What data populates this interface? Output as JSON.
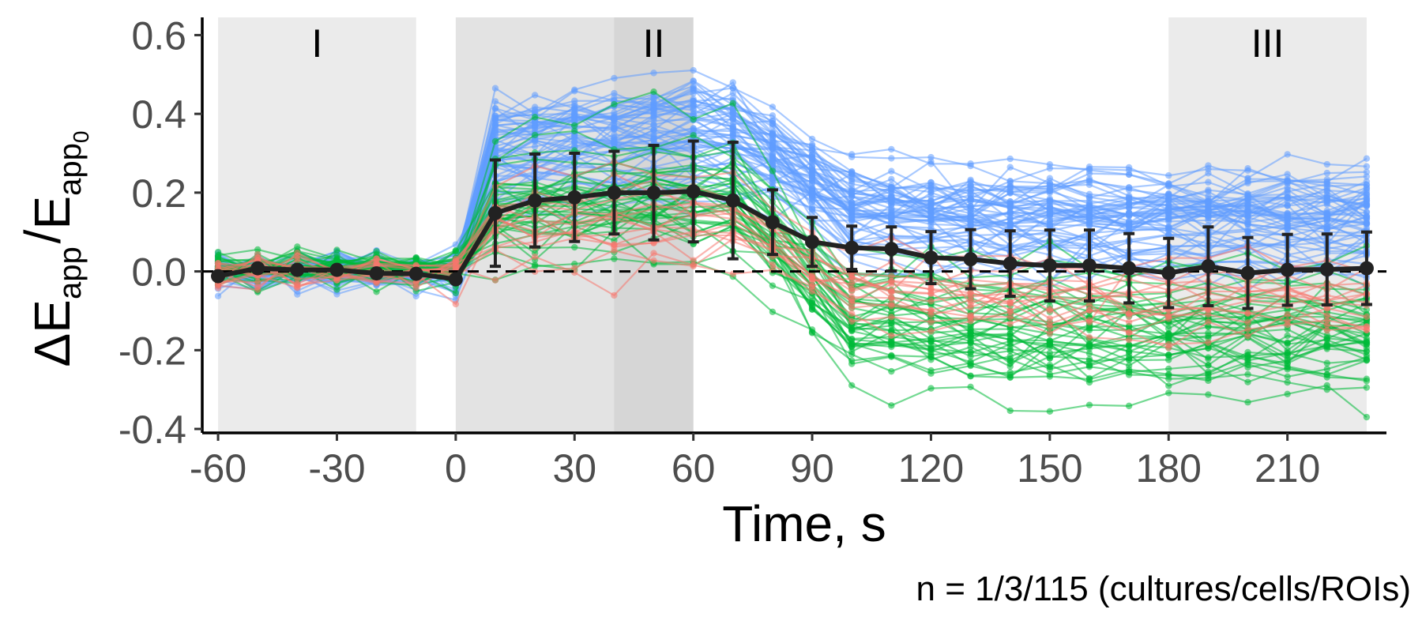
{
  "chart_data": {
    "type": "line",
    "xlabel": "Time, s",
    "ylabel": {
      "prefix": "Δ",
      "E": "E",
      "sub": "app",
      "slash": "/",
      "E2": "E",
      "sub2": "app",
      "subsub": "0"
    },
    "caption": "n = 1/3/115 (cultures/cells/ROIs)",
    "xlim": [
      -64,
      235
    ],
    "ylim": [
      -0.41,
      0.645
    ],
    "x_ticks": [
      {
        "value": -60,
        "label": "-60"
      },
      {
        "value": -30,
        "label": "-30"
      },
      {
        "value": 0,
        "label": "0"
      },
      {
        "value": 30,
        "label": "30"
      },
      {
        "value": 60,
        "label": "60"
      },
      {
        "value": 90,
        "label": "90"
      },
      {
        "value": 120,
        "label": "120"
      },
      {
        "value": 150,
        "label": "150"
      },
      {
        "value": 180,
        "label": "180"
      },
      {
        "value": 210,
        "label": "210"
      }
    ],
    "y_ticks": [
      {
        "value": 0.6,
        "label": "0.6"
      },
      {
        "value": 0.4,
        "label": "0.4"
      },
      {
        "value": 0.2,
        "label": "0.2"
      },
      {
        "value": 0.0,
        "label": "0.0"
      },
      {
        "value": -0.2,
        "label": "-0.2"
      },
      {
        "value": -0.4,
        "label": "-0.4"
      }
    ],
    "grid": false,
    "reference_line": {
      "y": 0,
      "style": "dashed",
      "color": "#000000"
    },
    "regions": [
      {
        "label": "I",
        "x0": -60,
        "x1": -10,
        "color": "#ebebeb"
      },
      {
        "label": "II",
        "x0": 0,
        "x1": 60,
        "color": "#e3e3e3",
        "inner": {
          "x0": 40,
          "x1": 60,
          "color": "#d6d6d6"
        }
      },
      {
        "label": "III",
        "x0": 180,
        "x1": 230,
        "color": "#ebebeb"
      }
    ],
    "x": [
      -60,
      -50,
      -40,
      -30,
      -20,
      -10,
      0,
      10,
      20,
      30,
      40,
      50,
      60,
      70,
      80,
      90,
      100,
      110,
      120,
      130,
      140,
      150,
      160,
      170,
      180,
      190,
      200,
      210,
      220,
      230
    ],
    "mean_series": {
      "color": "#222222",
      "values": [
        -0.012,
        0.008,
        0.004,
        0.004,
        -0.005,
        -0.006,
        -0.02,
        0.148,
        0.18,
        0.188,
        0.2,
        0.2,
        0.203,
        0.18,
        0.125,
        0.075,
        0.06,
        0.057,
        0.035,
        0.031,
        0.02,
        0.015,
        0.015,
        0.008,
        -0.004,
        0.013,
        -0.004,
        0.004,
        0.005,
        0.008
      ],
      "sd": [
        0.0,
        0.0,
        0.0,
        0.0,
        0.0,
        0.0,
        0.0,
        0.135,
        0.118,
        0.112,
        0.105,
        0.12,
        0.128,
        0.148,
        0.082,
        0.062,
        0.055,
        0.056,
        0.066,
        0.075,
        0.083,
        0.09,
        0.09,
        0.088,
        0.088,
        0.1,
        0.09,
        0.09,
        0.09,
        0.092
      ]
    },
    "groups": [
      {
        "color": "#619cff",
        "count": 60,
        "before_mean": 0.0,
        "peak_mean": 0.34,
        "plateau_mean": 0.13,
        "spread": 0.07
      },
      {
        "color": "#00ba38",
        "count": 40,
        "before_mean": 0.005,
        "peak_mean": 0.17,
        "plateau_mean": -0.15,
        "spread": 0.08
      },
      {
        "color": "#f8766d",
        "count": 15,
        "before_mean": 0.0,
        "peak_mean": 0.16,
        "plateau_mean": -0.05,
        "spread": 0.06
      }
    ]
  }
}
